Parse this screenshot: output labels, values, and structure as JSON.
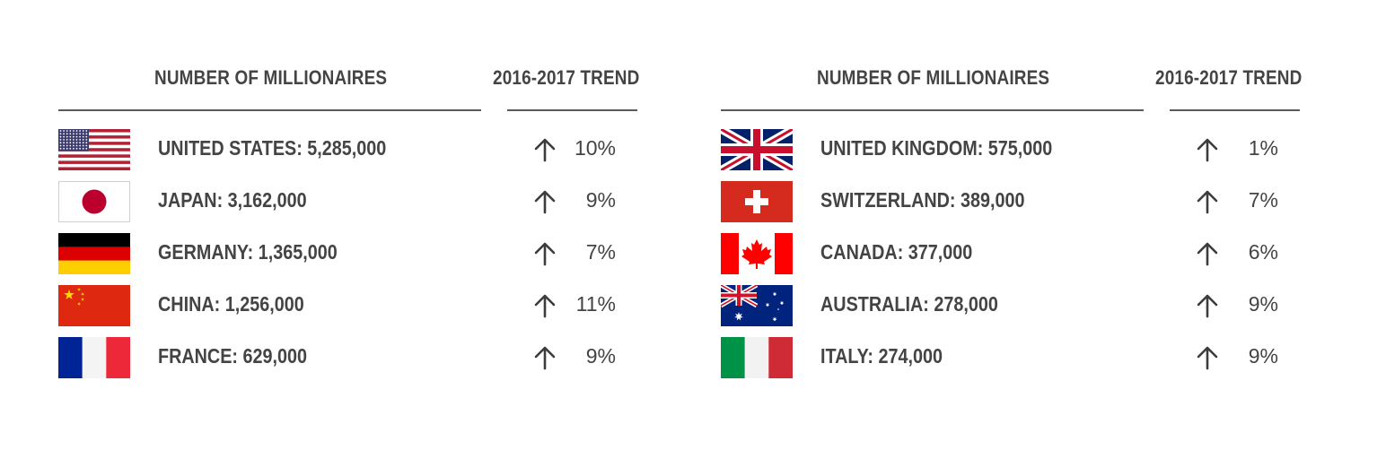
{
  "chart_data": {
    "type": "table",
    "columns": [
      "NUMBER OF MILLIONAIRES",
      "2016-2017 TREND"
    ],
    "panels": [
      {
        "header_count": "NUMBER OF MILLIONAIRES",
        "header_trend": "2016-2017 TREND",
        "rows": [
          {
            "label": "UNITED STATES: 5,285,000",
            "country": "UNITED STATES",
            "millionaires": 5285000,
            "trend": "10%",
            "trend_value": 10,
            "flag": "us-flag-icon"
          },
          {
            "label": "JAPAN: 3,162,000",
            "country": "JAPAN",
            "millionaires": 3162000,
            "trend": "9%",
            "trend_value": 9,
            "flag": "japan-flag-icon"
          },
          {
            "label": "GERMANY: 1,365,000",
            "country": "GERMANY",
            "millionaires": 1365000,
            "trend": "7%",
            "trend_value": 7,
            "flag": "germany-flag-icon"
          },
          {
            "label": "CHINA: 1,256,000",
            "country": "CHINA",
            "millionaires": 1256000,
            "trend": "11%",
            "trend_value": 11,
            "flag": "china-flag-icon"
          },
          {
            "label": "FRANCE: 629,000",
            "country": "FRANCE",
            "millionaires": 629000,
            "trend": "9%",
            "trend_value": 9,
            "flag": "france-flag-icon"
          }
        ]
      },
      {
        "header_count": "NUMBER OF MILLIONAIRES",
        "header_trend": "2016-2017 TREND",
        "rows": [
          {
            "label": "UNITED KINGDOM: 575,000",
            "country": "UNITED KINGDOM",
            "millionaires": 575000,
            "trend": "1%",
            "trend_value": 1,
            "flag": "uk-flag-icon"
          },
          {
            "label": "SWITZERLAND: 389,000",
            "country": "SWITZERLAND",
            "millionaires": 389000,
            "trend": "7%",
            "trend_value": 7,
            "flag": "switzerland-flag-icon"
          },
          {
            "label": "CANADA: 377,000",
            "country": "CANADA",
            "millionaires": 377000,
            "trend": "6%",
            "trend_value": 6,
            "flag": "canada-flag-icon"
          },
          {
            "label": "AUSTRALIA: 278,000",
            "country": "AUSTRALIA",
            "millionaires": 278000,
            "trend": "9%",
            "trend_value": 9,
            "flag": "australia-flag-icon"
          },
          {
            "label": "ITALY: 274,000",
            "country": "ITALY",
            "millionaires": 274000,
            "trend": "9%",
            "trend_value": 9,
            "flag": "italy-flag-icon"
          }
        ]
      }
    ],
    "trend_direction": "up",
    "trend_icon": "arrow-up-icon"
  },
  "colors": {
    "text": "#444444",
    "rule": "#5a5a5a",
    "arrow": "#3c3c3c"
  }
}
